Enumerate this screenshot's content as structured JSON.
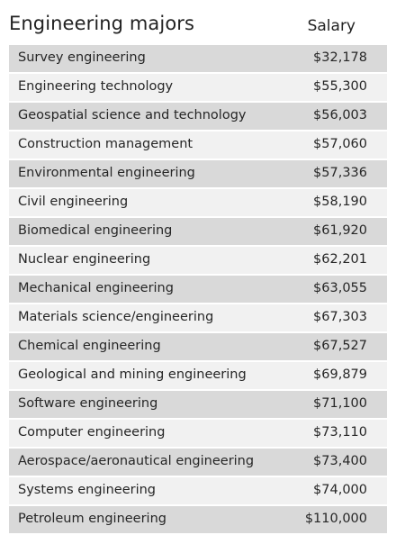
{
  "header": {
    "title": "Engineering majors",
    "salary_label": "Salary"
  },
  "chart_data": {
    "type": "table",
    "columns": [
      "Engineering majors",
      "Salary"
    ],
    "rows": [
      {
        "major": "Survey engineering",
        "salary": "$32,178"
      },
      {
        "major": "Engineering technology",
        "salary": "$55,300"
      },
      {
        "major": "Geospatial science and technology",
        "salary": "$56,003"
      },
      {
        "major": "Construction management",
        "salary": "$57,060"
      },
      {
        "major": "Environmental engineering",
        "salary": "$57,336"
      },
      {
        "major": "Civil engineering",
        "salary": "$58,190"
      },
      {
        "major": "Biomedical engineering",
        "salary": "$61,920"
      },
      {
        "major": "Nuclear engineering",
        "salary": "$62,201"
      },
      {
        "major": "Mechanical engineering",
        "salary": "$63,055"
      },
      {
        "major": "Materials science/engineering",
        "salary": "$67,303"
      },
      {
        "major": "Chemical engineering",
        "salary": "$67,527"
      },
      {
        "major": "Geological and mining engineering",
        "salary": "$69,879"
      },
      {
        "major": "Software engineering",
        "salary": "$71,100"
      },
      {
        "major": "Computer engineering",
        "salary": "$73,110"
      },
      {
        "major": "Aerospace/aeronautical engineering",
        "salary": "$73,400"
      },
      {
        "major": "Systems engineering",
        "salary": "$74,000"
      },
      {
        "major": "Petroleum engineering",
        "salary": "$110,000"
      }
    ]
  },
  "colors": {
    "row_dark": "#d9d9d9",
    "row_light": "#f1f1f1",
    "text": "#262626"
  }
}
